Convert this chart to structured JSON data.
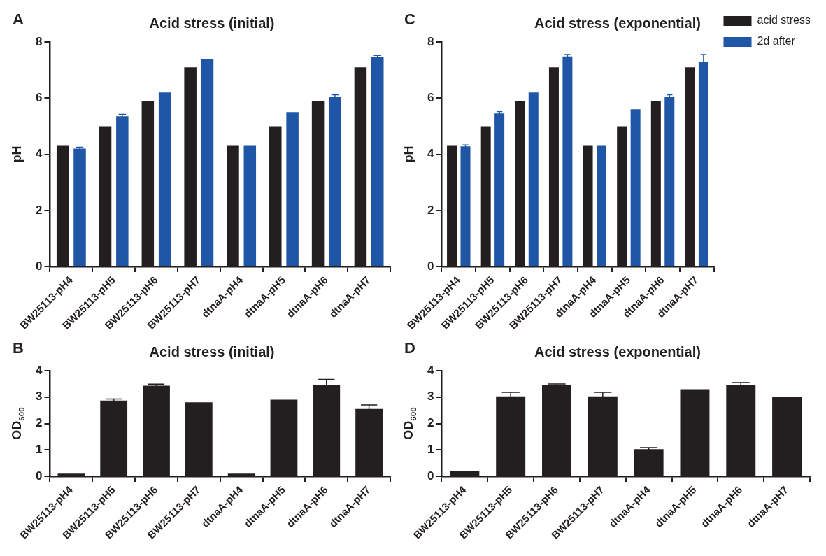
{
  "chart_data": [
    {
      "type": "bar",
      "title": "Acid stress (initial)",
      "ylabel": "pH",
      "annotations": [
        "A"
      ],
      "categories": [
        "BW25113-pH4",
        "BW25113-pH5",
        "BW25113-pH6",
        "BW25113-pH7",
        "dtnaA-pH4",
        "dtnaA-pH5",
        "dtnaA-pH6",
        "dtnaA-pH7"
      ],
      "ylim": [
        0,
        8
      ],
      "yticks": [
        0,
        2,
        4,
        6,
        8
      ],
      "grid": false,
      "legend": false,
      "series": [
        {
          "color": "#231f20",
          "values": [
            4.3,
            5.0,
            5.9,
            7.1,
            4.3,
            5.0,
            5.9,
            7.1
          ]
        },
        {
          "color": "#1f56a5",
          "values": [
            4.2,
            5.35,
            6.2,
            7.4,
            4.3,
            5.5,
            6.05,
            7.45
          ],
          "errors": [
            0.05,
            0.07,
            null,
            null,
            null,
            null,
            0.07,
            0.07
          ]
        }
      ]
    },
    {
      "type": "bar",
      "title": "Acid stress (exponential)",
      "ylabel": "pH",
      "annotations": [
        "C"
      ],
      "categories": [
        "BW25113-pH4",
        "BW25113-pH5",
        "BW25113-pH6",
        "BW25113-pH7",
        "dtnaA-pH4",
        "dtnaA-pH5",
        "dtnaA-pH6",
        "dtnaA-pH7"
      ],
      "ylim": [
        0,
        8
      ],
      "yticks": [
        0,
        2,
        4,
        6,
        8
      ],
      "grid": false,
      "legend": "top right",
      "series": [
        {
          "name": "acid stress",
          "color": "#231f20",
          "values": [
            4.3,
            5.0,
            5.9,
            7.1,
            4.3,
            5.0,
            5.9,
            7.1
          ]
        },
        {
          "name": "2d after",
          "color": "#1f56a5",
          "values": [
            4.28,
            5.45,
            6.2,
            7.48,
            4.3,
            5.6,
            6.05,
            7.3
          ],
          "errors": [
            0.05,
            0.07,
            null,
            0.07,
            null,
            null,
            0.07,
            0.25
          ]
        }
      ]
    },
    {
      "type": "bar",
      "title": "Acid stress (initial)",
      "ylabel": "OD$_{600}$",
      "annotations": [
        "B"
      ],
      "categories": [
        "BW25113-pH4",
        "BW25113-pH5",
        "BW25113-pH6",
        "BW25113-pH7",
        "dtnaA-pH4",
        "dtnaA-pH5",
        "dtnaA-pH6",
        "dtnaA-pH7"
      ],
      "ylim": [
        0,
        4
      ],
      "yticks": [
        0,
        1,
        2,
        3,
        4
      ],
      "grid": false,
      "legend": false,
      "series": [
        {
          "color": "#231f20",
          "values": [
            0.1,
            2.87,
            3.43,
            2.8,
            0.1,
            2.9,
            3.47,
            2.55
          ],
          "errors": [
            null,
            0.06,
            0.06,
            null,
            null,
            null,
            0.2,
            0.15
          ]
        }
      ]
    },
    {
      "type": "bar",
      "title": "Acid stress (exponential)",
      "ylabel": "OD$_{600}$",
      "annotations": [
        "D"
      ],
      "categories": [
        "BW25113-pH4",
        "BW25113-pH5",
        "BW25113-pH6",
        "BW25113-pH7",
        "dtnaA-pH4",
        "dtnaA-pH5",
        "dtnaA-pH6",
        "dtnaA-pH7"
      ],
      "ylim": [
        0,
        4
      ],
      "yticks": [
        0,
        1,
        2,
        3,
        4
      ],
      "grid": false,
      "legend": false,
      "series": [
        {
          "color": "#231f20",
          "values": [
            0.2,
            3.03,
            3.45,
            3.03,
            1.03,
            3.3,
            3.45,
            3.0
          ],
          "errors": [
            null,
            0.15,
            0.05,
            0.15,
            0.06,
            null,
            0.1,
            null
          ]
        }
      ]
    }
  ]
}
